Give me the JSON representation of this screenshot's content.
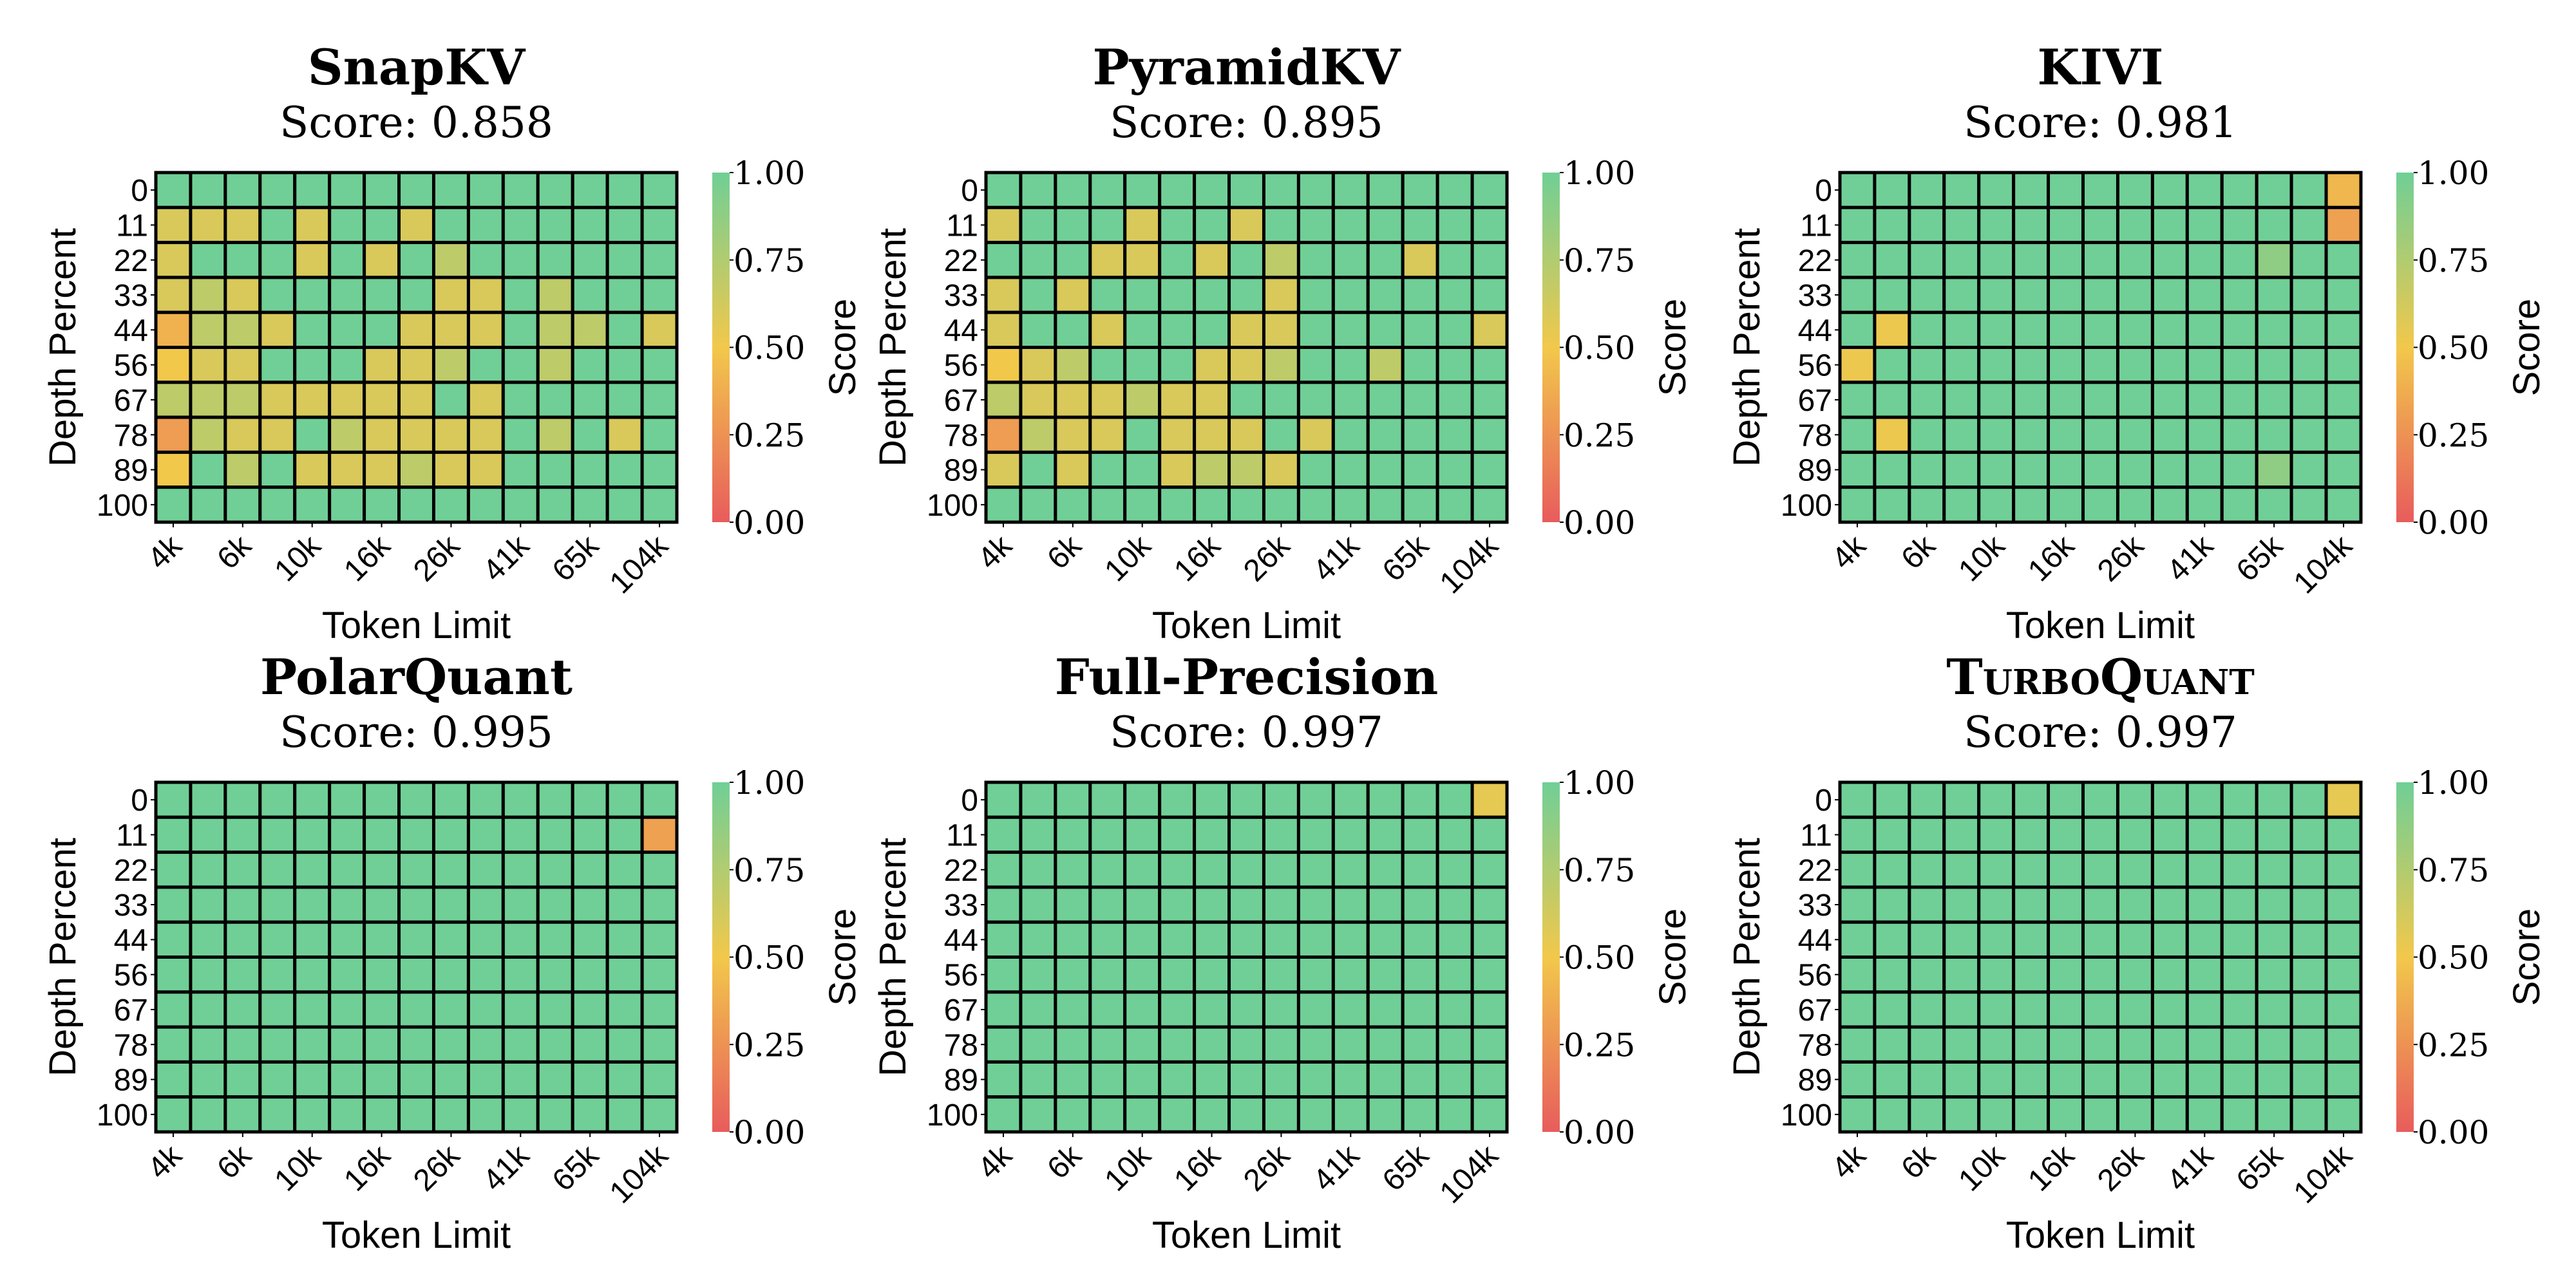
{
  "colormap": {
    "0": "#e85c5c",
    "0.5": "#f2c84b",
    "1": "#70cf96"
  },
  "chart_data": [
    {
      "type": "heatmap",
      "title": "SnapKV",
      "subtitle": "Score: 0.858",
      "xlabel": "Token Limit",
      "ylabel": "Depth Percent",
      "colorbar_label": "Score",
      "colorbar_ticks": [
        "0.00",
        "0.25",
        "0.50",
        "0.75",
        "1.00"
      ],
      "zlim": [
        0,
        1
      ],
      "xtick_labels": [
        "4k",
        "6k",
        "10k",
        "16k",
        "26k",
        "41k",
        "65k",
        "104k"
      ],
      "ytick_labels": [
        "0",
        "11",
        "22",
        "33",
        "44",
        "56",
        "67",
        "78",
        "89",
        "100"
      ],
      "z": [
        [
          1,
          1,
          1,
          1,
          1,
          1,
          1,
          1,
          1,
          1,
          1,
          1,
          1,
          1,
          1
        ],
        [
          0.6,
          0.6,
          0.6,
          1,
          0.6,
          1,
          1,
          0.6,
          1,
          1,
          1,
          1,
          1,
          1,
          1
        ],
        [
          0.6,
          1,
          1,
          1,
          0.6,
          1,
          0.6,
          1,
          0.7,
          1,
          1,
          1,
          1,
          1,
          1
        ],
        [
          0.6,
          0.7,
          0.6,
          1,
          1,
          1,
          1,
          1,
          0.6,
          0.6,
          1,
          0.7,
          1,
          1,
          1
        ],
        [
          0.4,
          0.7,
          0.7,
          0.6,
          1,
          1,
          1,
          0.6,
          0.6,
          0.6,
          1,
          0.7,
          0.7,
          1,
          0.6
        ],
        [
          0.5,
          0.6,
          0.6,
          1,
          1,
          1,
          0.6,
          0.6,
          0.7,
          1,
          1,
          0.7,
          1,
          1,
          1
        ],
        [
          0.7,
          0.7,
          0.7,
          0.6,
          0.6,
          0.6,
          0.6,
          0.6,
          1,
          0.6,
          1,
          1,
          1,
          1,
          1
        ],
        [
          0.3,
          0.7,
          0.6,
          0.6,
          1,
          0.7,
          0.6,
          0.6,
          0.6,
          0.6,
          1,
          0.7,
          1,
          0.6,
          1
        ],
        [
          0.5,
          1,
          0.7,
          1,
          0.6,
          0.6,
          0.6,
          0.7,
          0.6,
          0.6,
          1,
          1,
          1,
          1,
          1
        ],
        [
          1,
          1,
          1,
          1,
          1,
          1,
          1,
          1,
          1,
          1,
          1,
          1,
          1,
          1,
          1
        ]
      ]
    },
    {
      "type": "heatmap",
      "title": "PyramidKV",
      "subtitle": "Score: 0.895",
      "xlabel": "Token Limit",
      "ylabel": "Depth Percent",
      "colorbar_label": "Score",
      "colorbar_ticks": [
        "0.00",
        "0.25",
        "0.50",
        "0.75",
        "1.00"
      ],
      "zlim": [
        0,
        1
      ],
      "xtick_labels": [
        "4k",
        "6k",
        "10k",
        "16k",
        "26k",
        "41k",
        "65k",
        "104k"
      ],
      "ytick_labels": [
        "0",
        "11",
        "22",
        "33",
        "44",
        "56",
        "67",
        "78",
        "89",
        "100"
      ],
      "z": [
        [
          1,
          1,
          1,
          1,
          1,
          1,
          1,
          1,
          1,
          1,
          1,
          1,
          1,
          1,
          1
        ],
        [
          0.6,
          1,
          1,
          1,
          0.6,
          1,
          1,
          0.6,
          1,
          1,
          1,
          1,
          1,
          1,
          1
        ],
        [
          1,
          1,
          1,
          0.6,
          0.6,
          1,
          0.6,
          1,
          0.7,
          1,
          1,
          1,
          0.6,
          1,
          1
        ],
        [
          0.6,
          1,
          0.6,
          1,
          1,
          1,
          1,
          1,
          0.6,
          1,
          1,
          1,
          1,
          1,
          1
        ],
        [
          0.6,
          1,
          1,
          0.6,
          1,
          1,
          1,
          0.6,
          0.6,
          1,
          1,
          1,
          1,
          1,
          0.6
        ],
        [
          0.5,
          0.6,
          0.7,
          1,
          1,
          1,
          0.6,
          0.6,
          0.7,
          1,
          1,
          0.7,
          1,
          1,
          1
        ],
        [
          0.7,
          0.6,
          0.6,
          0.6,
          0.7,
          0.6,
          0.6,
          1,
          1,
          1,
          1,
          1,
          1,
          1,
          1
        ],
        [
          0.3,
          0.7,
          0.6,
          0.6,
          1,
          0.6,
          0.6,
          0.6,
          1,
          0.6,
          1,
          1,
          1,
          1,
          1
        ],
        [
          0.6,
          1,
          0.6,
          1,
          1,
          0.6,
          0.7,
          0.7,
          0.6,
          1,
          1,
          1,
          1,
          1,
          1
        ],
        [
          1,
          1,
          1,
          1,
          1,
          1,
          1,
          1,
          1,
          1,
          1,
          1,
          1,
          1,
          1
        ]
      ]
    },
    {
      "type": "heatmap",
      "title": "KIVI",
      "subtitle": "Score: 0.981",
      "xlabel": "Token Limit",
      "ylabel": "Depth Percent",
      "colorbar_label": "Score",
      "colorbar_ticks": [
        "0.00",
        "0.25",
        "0.50",
        "0.75",
        "1.00"
      ],
      "zlim": [
        0,
        1
      ],
      "xtick_labels": [
        "4k",
        "6k",
        "10k",
        "16k",
        "26k",
        "41k",
        "65k",
        "104k"
      ],
      "ytick_labels": [
        "0",
        "11",
        "22",
        "33",
        "44",
        "56",
        "67",
        "78",
        "89",
        "100"
      ],
      "z": [
        [
          1,
          1,
          1,
          1,
          1,
          1,
          1,
          1,
          1,
          1,
          1,
          1,
          1,
          1,
          0.42
        ],
        [
          1,
          1,
          1,
          1,
          1,
          1,
          1,
          1,
          1,
          1,
          1,
          1,
          1,
          1,
          0.32
        ],
        [
          1,
          1,
          1,
          1,
          1,
          1,
          1,
          1,
          1,
          1,
          1,
          1,
          0.88,
          1,
          1
        ],
        [
          1,
          1,
          1,
          1,
          1,
          1,
          1,
          1,
          1,
          1,
          1,
          1,
          1,
          1,
          1
        ],
        [
          1,
          0.52,
          1,
          1,
          1,
          1,
          1,
          1,
          1,
          1,
          1,
          1,
          1,
          1,
          1
        ],
        [
          0.52,
          1,
          1,
          1,
          1,
          1,
          1,
          1,
          1,
          1,
          1,
          1,
          1,
          1,
          1
        ],
        [
          1,
          1,
          1,
          1,
          1,
          1,
          1,
          1,
          1,
          1,
          1,
          1,
          1,
          1,
          1
        ],
        [
          1,
          0.52,
          1,
          1,
          1,
          1,
          1,
          1,
          1,
          1,
          1,
          1,
          1,
          1,
          1
        ],
        [
          1,
          1,
          1,
          1,
          1,
          1,
          1,
          1,
          1,
          1,
          1,
          1,
          0.88,
          1,
          1
        ],
        [
          1,
          1,
          1,
          1,
          1,
          1,
          1,
          1,
          1,
          1,
          1,
          1,
          1,
          1,
          1
        ]
      ]
    },
    {
      "type": "heatmap",
      "title": "PolarQuant",
      "subtitle": "Score: 0.995",
      "xlabel": "Token Limit",
      "ylabel": "Depth Percent",
      "colorbar_label": "Score",
      "colorbar_ticks": [
        "0.00",
        "0.25",
        "0.50",
        "0.75",
        "1.00"
      ],
      "zlim": [
        0,
        1
      ],
      "xtick_labels": [
        "4k",
        "6k",
        "10k",
        "16k",
        "26k",
        "41k",
        "65k",
        "104k"
      ],
      "ytick_labels": [
        "0",
        "11",
        "22",
        "33",
        "44",
        "56",
        "67",
        "78",
        "89",
        "100"
      ],
      "z": [
        [
          1,
          1,
          1,
          1,
          1,
          1,
          1,
          1,
          1,
          1,
          1,
          1,
          1,
          1,
          1
        ],
        [
          1,
          1,
          1,
          1,
          1,
          1,
          1,
          1,
          1,
          1,
          1,
          1,
          1,
          1,
          0.32
        ],
        [
          1,
          1,
          1,
          1,
          1,
          1,
          1,
          1,
          1,
          1,
          1,
          1,
          1,
          1,
          1
        ],
        [
          1,
          1,
          1,
          1,
          1,
          1,
          1,
          1,
          1,
          1,
          1,
          1,
          1,
          1,
          1
        ],
        [
          1,
          1,
          1,
          1,
          1,
          1,
          1,
          1,
          1,
          1,
          1,
          1,
          1,
          1,
          1
        ],
        [
          1,
          1,
          1,
          1,
          1,
          1,
          1,
          1,
          1,
          1,
          1,
          1,
          1,
          1,
          1
        ],
        [
          1,
          1,
          1,
          1,
          1,
          1,
          1,
          1,
          1,
          1,
          1,
          1,
          1,
          1,
          1
        ],
        [
          1,
          1,
          1,
          1,
          1,
          1,
          1,
          1,
          1,
          1,
          1,
          1,
          1,
          1,
          1
        ],
        [
          1,
          1,
          1,
          1,
          1,
          1,
          1,
          1,
          1,
          1,
          1,
          1,
          1,
          1,
          1
        ],
        [
          1,
          1,
          1,
          1,
          1,
          1,
          1,
          1,
          1,
          1,
          1,
          1,
          1,
          1,
          1
        ]
      ]
    },
    {
      "type": "heatmap",
      "title": "Full-Precision",
      "subtitle": "Score: 0.997",
      "xlabel": "Token Limit",
      "ylabel": "Depth Percent",
      "colorbar_label": "Score",
      "colorbar_ticks": [
        "0.00",
        "0.25",
        "0.50",
        "0.75",
        "1.00"
      ],
      "zlim": [
        0,
        1
      ],
      "xtick_labels": [
        "4k",
        "6k",
        "10k",
        "16k",
        "26k",
        "41k",
        "65k",
        "104k"
      ],
      "ytick_labels": [
        "0",
        "11",
        "22",
        "33",
        "44",
        "56",
        "67",
        "78",
        "89",
        "100"
      ],
      "z": [
        [
          1,
          1,
          1,
          1,
          1,
          1,
          1,
          1,
          1,
          1,
          1,
          1,
          1,
          1,
          0.55
        ],
        [
          1,
          1,
          1,
          1,
          1,
          1,
          1,
          1,
          1,
          1,
          1,
          1,
          1,
          1,
          1
        ],
        [
          1,
          1,
          1,
          1,
          1,
          1,
          1,
          1,
          1,
          1,
          1,
          1,
          1,
          1,
          1
        ],
        [
          1,
          1,
          1,
          1,
          1,
          1,
          1,
          1,
          1,
          1,
          1,
          1,
          1,
          1,
          1
        ],
        [
          1,
          1,
          1,
          1,
          1,
          1,
          1,
          1,
          1,
          1,
          1,
          1,
          1,
          1,
          1
        ],
        [
          1,
          1,
          1,
          1,
          1,
          1,
          1,
          1,
          1,
          1,
          1,
          1,
          1,
          1,
          1
        ],
        [
          1,
          1,
          1,
          1,
          1,
          1,
          1,
          1,
          1,
          1,
          1,
          1,
          1,
          1,
          1
        ],
        [
          1,
          1,
          1,
          1,
          1,
          1,
          1,
          1,
          1,
          1,
          1,
          1,
          1,
          1,
          1
        ],
        [
          1,
          1,
          1,
          1,
          1,
          1,
          1,
          1,
          1,
          1,
          1,
          1,
          1,
          1,
          1
        ],
        [
          1,
          1,
          1,
          1,
          1,
          1,
          1,
          1,
          1,
          1,
          1,
          1,
          1,
          1,
          1
        ]
      ]
    },
    {
      "type": "heatmap",
      "title": "TurboQuant",
      "subtitle": "Score: 0.997",
      "xlabel": "Token Limit",
      "ylabel": "Depth Percent",
      "colorbar_label": "Score",
      "colorbar_ticks": [
        "0.00",
        "0.25",
        "0.50",
        "0.75",
        "1.00"
      ],
      "zlim": [
        0,
        1
      ],
      "xtick_labels": [
        "4k",
        "6k",
        "10k",
        "16k",
        "26k",
        "41k",
        "65k",
        "104k"
      ],
      "ytick_labels": [
        "0",
        "11",
        "22",
        "33",
        "44",
        "56",
        "67",
        "78",
        "89",
        "100"
      ],
      "z": [
        [
          1,
          1,
          1,
          1,
          1,
          1,
          1,
          1,
          1,
          1,
          1,
          1,
          1,
          1,
          0.55
        ],
        [
          1,
          1,
          1,
          1,
          1,
          1,
          1,
          1,
          1,
          1,
          1,
          1,
          1,
          1,
          1
        ],
        [
          1,
          1,
          1,
          1,
          1,
          1,
          1,
          1,
          1,
          1,
          1,
          1,
          1,
          1,
          1
        ],
        [
          1,
          1,
          1,
          1,
          1,
          1,
          1,
          1,
          1,
          1,
          1,
          1,
          1,
          1,
          1
        ],
        [
          1,
          1,
          1,
          1,
          1,
          1,
          1,
          1,
          1,
          1,
          1,
          1,
          1,
          1,
          1
        ],
        [
          1,
          1,
          1,
          1,
          1,
          1,
          1,
          1,
          1,
          1,
          1,
          1,
          1,
          1,
          1
        ],
        [
          1,
          1,
          1,
          1,
          1,
          1,
          1,
          1,
          1,
          1,
          1,
          1,
          1,
          1,
          1
        ],
        [
          1,
          1,
          1,
          1,
          1,
          1,
          1,
          1,
          1,
          1,
          1,
          1,
          1,
          1,
          1
        ],
        [
          1,
          1,
          1,
          1,
          1,
          1,
          1,
          1,
          1,
          1,
          1,
          1,
          1,
          1,
          1
        ],
        [
          1,
          1,
          1,
          1,
          1,
          1,
          1,
          1,
          1,
          1,
          1,
          1,
          1,
          1,
          1
        ]
      ]
    }
  ]
}
